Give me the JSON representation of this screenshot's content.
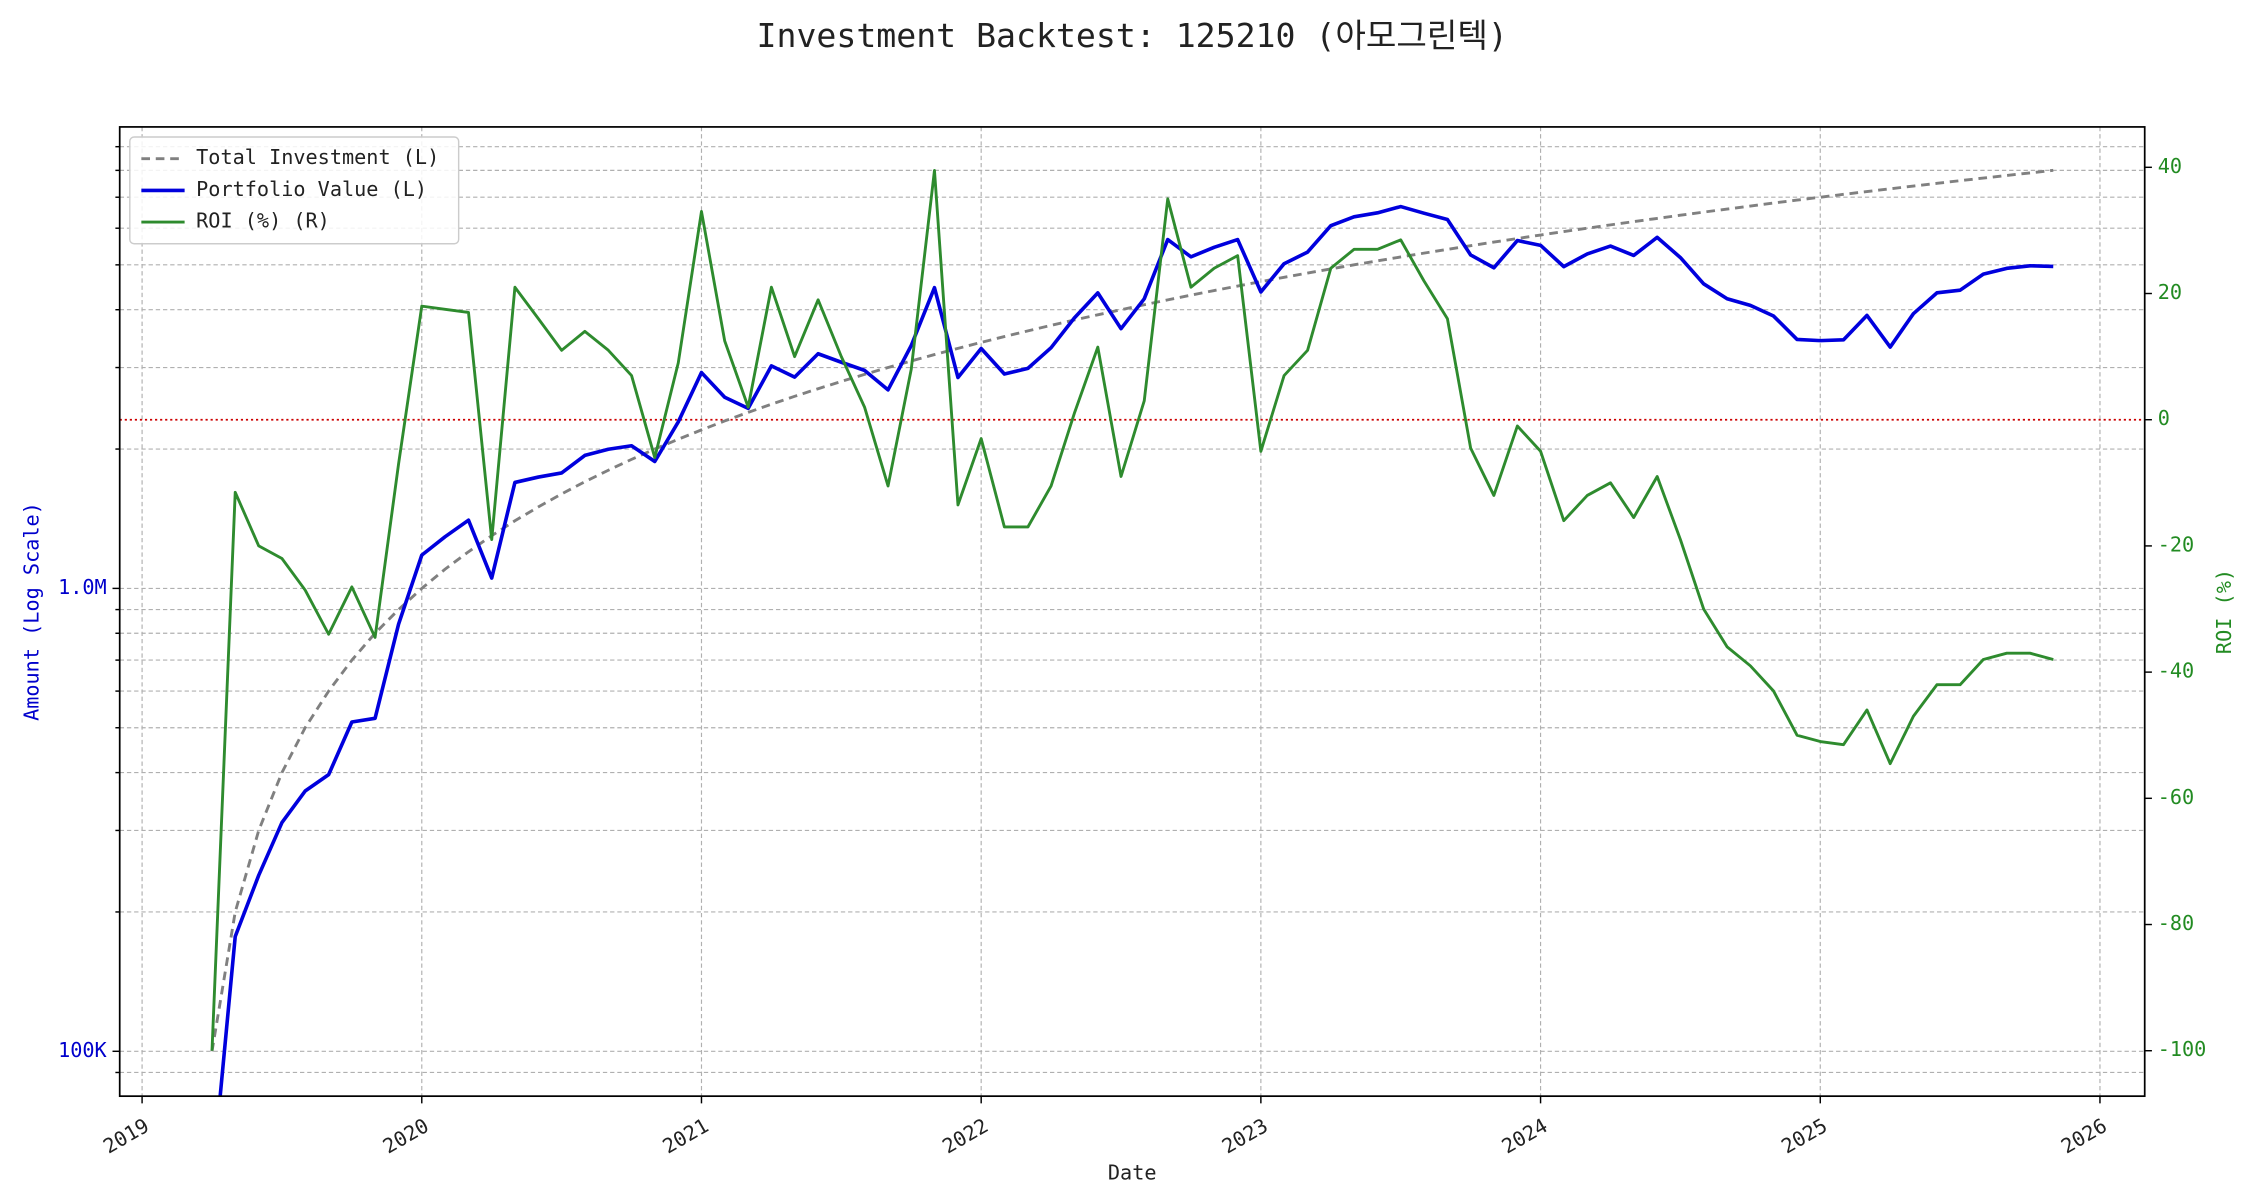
{
  "chart_data": {
    "type": "line",
    "title": "Investment Backtest: 125210 (아모그린텍)",
    "xlabel": "Date",
    "ylabel": "Amount (Log Scale)",
    "y2label": "ROI (%)",
    "ylabel_color": "#0000cc",
    "y2label_color": "#228b22",
    "ylog": true,
    "grid": true,
    "legend": "upper left",
    "xlim": [
      2018.92,
      2026.16
    ],
    "xticks": [
      2019,
      2020,
      2021,
      2022,
      2023,
      2024,
      2025,
      2026
    ],
    "ylim": [
      80000,
      9930000
    ],
    "yticks": [
      {
        "value": 100000,
        "label": "100K"
      },
      {
        "value": 1000000,
        "label": "1.0M"
      }
    ],
    "yminor_ticks": [
      90000,
      200000,
      300000,
      400000,
      500000,
      600000,
      700000,
      800000,
      900000,
      2000000,
      3000000,
      4000000,
      5000000,
      6000000,
      7000000,
      8000000,
      9000000
    ],
    "y2lim": [
      -107.2,
      46.4
    ],
    "y2ticks": [
      -100,
      -80,
      -60,
      -40,
      -20,
      0,
      20,
      40
    ],
    "hline": {
      "value": 0,
      "axis": "y2",
      "color": "#cc0000"
    },
    "x": [
      2019.25,
      2019.333,
      2019.417,
      2019.5,
      2019.583,
      2019.667,
      2019.75,
      2019.833,
      2019.917,
      2020,
      2020.083,
      2020.167,
      2020.25,
      2020.333,
      2020.417,
      2020.5,
      2020.583,
      2020.667,
      2020.75,
      2020.833,
      2020.917,
      2021,
      2021.083,
      2021.167,
      2021.25,
      2021.333,
      2021.417,
      2021.5,
      2021.583,
      2021.667,
      2021.75,
      2021.833,
      2021.917,
      2022,
      2022.083,
      2022.167,
      2022.25,
      2022.333,
      2022.417,
      2022.5,
      2022.583,
      2022.667,
      2022.75,
      2022.833,
      2022.917,
      2023,
      2023.083,
      2023.167,
      2023.25,
      2023.333,
      2023.417,
      2023.5,
      2023.583,
      2023.667,
      2023.75,
      2023.833,
      2023.917,
      2024,
      2024.083,
      2024.167,
      2024.25,
      2024.333,
      2024.417,
      2024.5,
      2024.583,
      2024.667,
      2024.75,
      2024.833,
      2024.917,
      2025,
      2025.083,
      2025.167,
      2025.25,
      2025.333,
      2025.417,
      2025.5,
      2025.583,
      2025.667,
      2025.75,
      2025.833
    ],
    "series": [
      {
        "name": "Total Investment (L)",
        "color": "#808080",
        "dash": true,
        "width": 2,
        "axis": "y",
        "values": [
          100000,
          200000,
          300000,
          400000,
          500000,
          600000,
          700000,
          800000,
          900000,
          1000000,
          1100000,
          1200000,
          1300000,
          1400000,
          1500000,
          1600000,
          1700000,
          1800000,
          1900000,
          2000000,
          2100000,
          2200000,
          2300000,
          2400000,
          2500000,
          2600000,
          2700000,
          2800000,
          2900000,
          3000000,
          3100000,
          3200000,
          3300000,
          3400000,
          3500000,
          3600000,
          3700000,
          3800000,
          3900000,
          4000000,
          4100000,
          4200000,
          4300000,
          4400000,
          4500000,
          4600000,
          4700000,
          4800000,
          4900000,
          5000000,
          5100000,
          5200000,
          5300000,
          5400000,
          5500000,
          5600000,
          5700000,
          5800000,
          5900000,
          6000000,
          6100000,
          6200000,
          6300000,
          6400000,
          6500000,
          6600000,
          6700000,
          6800000,
          6900000,
          7000000,
          7100000,
          7200000,
          7300000,
          7400000,
          7500000,
          7600000,
          7700000,
          7800000,
          7900000,
          8000000
        ]
      },
      {
        "name": "Portfolio Value (L)",
        "color": "#0000dd",
        "dash": false,
        "width": 2.5,
        "axis": "y",
        "values": [
          0,
          177000,
          240000,
          312000,
          365000,
          396000,
          514500,
          524000,
          837000,
          1180000,
          1292500,
          1404000,
          1053000,
          1694000,
          1740000,
          1776000,
          1938000,
          1998000,
          2033000,
          1880000,
          2289000,
          2926000,
          2587500,
          2448000,
          3025000,
          2860000,
          3213000,
          3080000,
          2958000,
          2685000,
          3348000,
          4464000,
          2854500,
          3298000,
          2905000,
          2988000,
          3311500,
          3838000,
          4348500,
          3640000,
          4223000,
          5670000,
          5203000,
          5456000,
          5670000,
          4370000,
          5029000,
          5328000,
          6076000,
          6350000,
          6477000,
          6682000,
          6466000,
          6264000,
          5252500,
          4928000,
          5643000,
          5510000,
          4956000,
          5280000,
          5490000,
          5239000,
          5733000,
          5184000,
          4550000,
          4224000,
          4087000,
          3876000,
          3450000,
          3430000,
          3443500,
          3888000,
          3321500,
          3922000,
          4350000,
          4408000,
          4774000,
          4914000,
          4977000,
          4960000
        ]
      },
      {
        "name": "ROI (%) (R)",
        "color": "#2e8b2e",
        "dash": false,
        "width": 2,
        "axis": "y2",
        "values": [
          -100,
          -11.5,
          -20,
          -22,
          -27,
          -34,
          -26.5,
          -34.5,
          -7,
          18,
          17.5,
          17,
          -19,
          21,
          16,
          11,
          14,
          11,
          7,
          -6,
          9,
          33,
          12.5,
          2,
          21,
          10,
          19,
          10,
          2,
          -10.5,
          8,
          39.5,
          -13.5,
          -3,
          -17,
          -17,
          -10.5,
          1,
          11.5,
          -9,
          3,
          35,
          21,
          24,
          26,
          -5,
          7,
          11,
          24,
          27,
          27,
          28.5,
          22,
          16,
          -4.5,
          -12,
          -1,
          -5,
          -16,
          -12,
          -10,
          -15.5,
          -9,
          -19,
          -30,
          -36,
          -39,
          -43,
          -50,
          -51,
          -51.5,
          -46,
          -54.5,
          -47,
          -42,
          -42,
          -38,
          -37,
          -37,
          -38
        ]
      }
    ]
  }
}
